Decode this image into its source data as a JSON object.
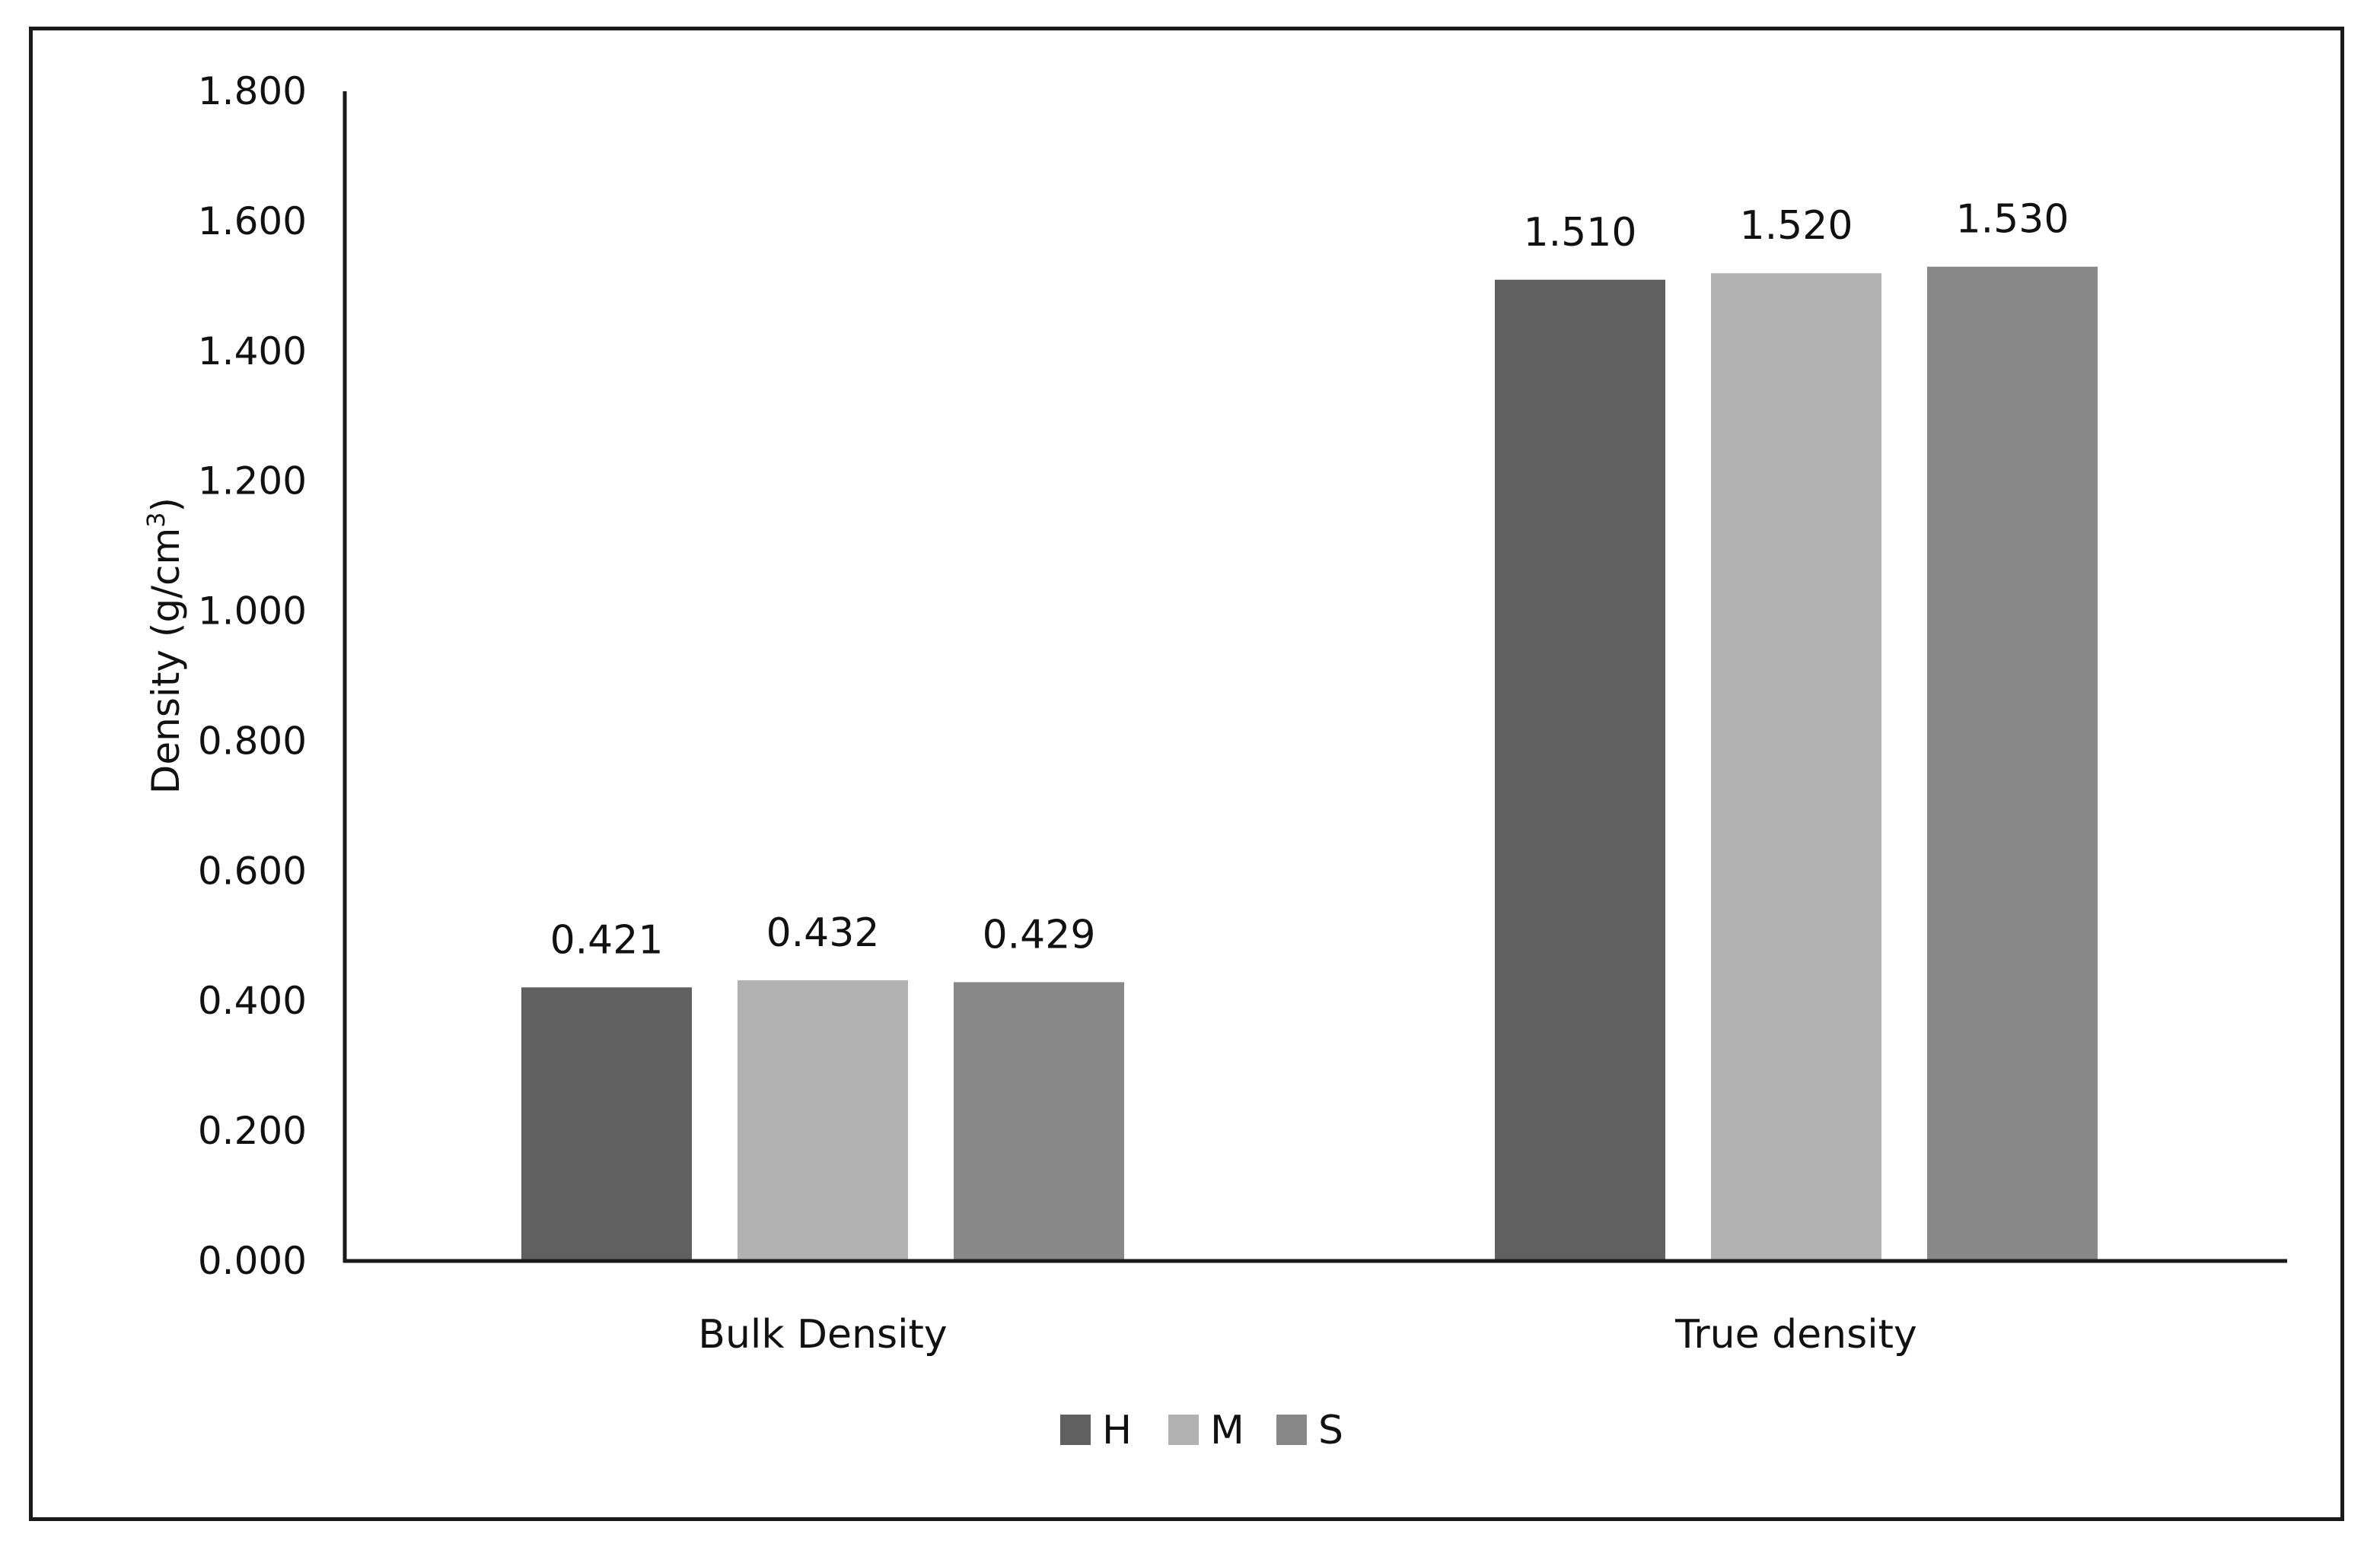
{
  "chart_data": {
    "type": "bar",
    "title": "",
    "xlabel": "",
    "ylabel": "Density (g/cm",
    "ylabel_sup": "3",
    "ylabel_end": ")",
    "categories": [
      "Bulk Density",
      "True density"
    ],
    "series": [
      {
        "name": "H",
        "values": [
          0.421,
          1.51
        ],
        "labels": [
          "0.421",
          "1.510"
        ],
        "color": "#606060"
      },
      {
        "name": "M",
        "values": [
          0.432,
          1.52
        ],
        "labels": [
          "0.432",
          "1.520"
        ],
        "color": "#b2b2b2"
      },
      {
        "name": "S",
        "values": [
          0.429,
          1.53
        ],
        "labels": [
          "0.429",
          "1.530"
        ],
        "color": "#888888"
      }
    ],
    "ylim": [
      0,
      1.8
    ],
    "yticks": [
      0,
      0.2,
      0.4,
      0.6,
      0.8,
      1.0,
      1.2,
      1.4,
      1.6,
      1.8
    ],
    "ytick_labels": [
      "0.000",
      "0.200",
      "0.400",
      "0.600",
      "0.800",
      "1.000",
      "1.200",
      "1.400",
      "1.600",
      "1.800"
    ],
    "grid": false,
    "legend_position": "bottom-center",
    "axis_color": "#1a1a1a"
  }
}
